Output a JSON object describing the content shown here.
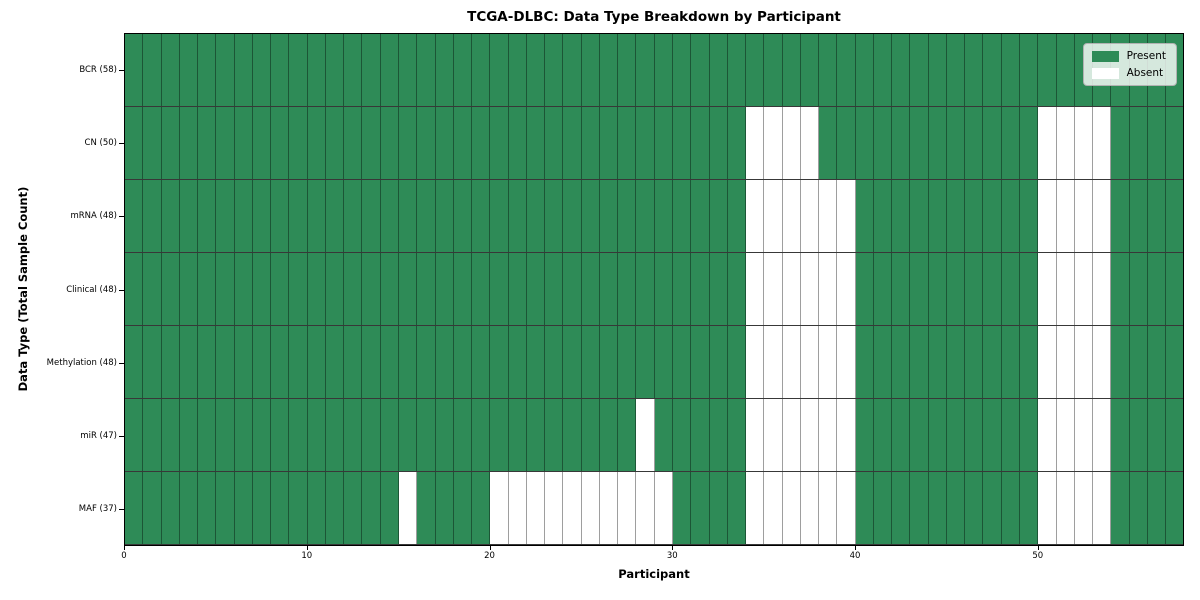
{
  "chart_data": {
    "type": "heatmap",
    "title": "TCGA-DLBC: Data Type Breakdown by Participant",
    "xlabel": "Participant",
    "ylabel": "Data Type (Total Sample Count)",
    "legend": [
      {
        "label": "Present",
        "state": "present"
      },
      {
        "label": "Absent",
        "state": "absent"
      }
    ],
    "present_color": "#2e8b57",
    "absent_color": "#ffffff",
    "n_participants": 58,
    "x_range": [
      0,
      58
    ],
    "x_ticks": [
      0,
      10,
      20,
      30,
      40,
      50
    ],
    "rows": [
      {
        "label": "BCR (58)",
        "data_type": "BCR",
        "total_samples": 58,
        "absent_participants": []
      },
      {
        "label": "CN (50)",
        "data_type": "CN",
        "total_samples": 50,
        "absent_participants": [
          34,
          35,
          36,
          37,
          50,
          51,
          52,
          53
        ]
      },
      {
        "label": "mRNA (48)",
        "data_type": "mRNA",
        "total_samples": 48,
        "absent_participants": [
          34,
          35,
          36,
          37,
          38,
          39,
          50,
          51,
          52,
          53
        ]
      },
      {
        "label": "Clinical (48)",
        "data_type": "Clinical",
        "total_samples": 48,
        "absent_participants": [
          34,
          35,
          36,
          37,
          38,
          39,
          50,
          51,
          52,
          53
        ]
      },
      {
        "label": "Methylation (48)",
        "data_type": "Methylation",
        "total_samples": 48,
        "absent_participants": [
          34,
          35,
          36,
          37,
          38,
          39,
          50,
          51,
          52,
          53
        ]
      },
      {
        "label": "miR (47)",
        "data_type": "miR",
        "total_samples": 47,
        "absent_participants": [
          28,
          34,
          35,
          36,
          37,
          38,
          39,
          50,
          51,
          52,
          53
        ]
      },
      {
        "label": "MAF (37)",
        "data_type": "MAF",
        "total_samples": 37,
        "absent_participants": [
          15,
          20,
          21,
          22,
          23,
          24,
          25,
          26,
          27,
          28,
          29,
          34,
          35,
          36,
          37,
          38,
          39,
          50,
          51,
          52,
          53
        ]
      }
    ]
  }
}
